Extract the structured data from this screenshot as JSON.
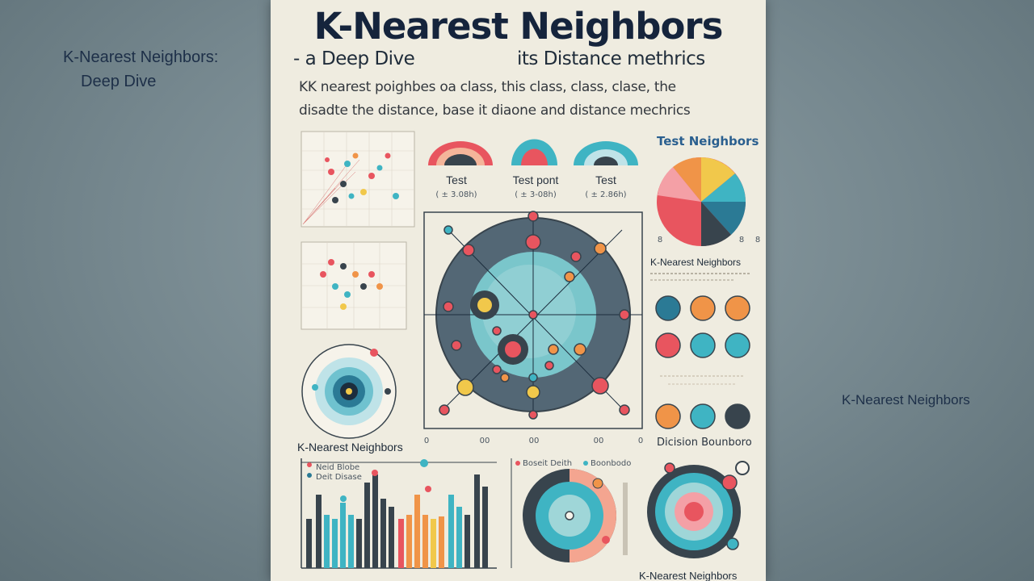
{
  "side_labels": {
    "left_line1": "K-Nearest Neighbors:",
    "left_line2": "Deep Dive",
    "right": "K-Nearest Neighbors"
  },
  "poster": {
    "title": "K-Nearest Neighbors",
    "subtitle_left": "- a Deep Dive",
    "subtitle_right": "its Distance methrics",
    "desc_line1": "KK nearest poighbes oa class, this class, class, clase, the",
    "desc_line2": "disadte the distance, base it diaone and distance mechrics",
    "test_labels": [
      {
        "name": "Test",
        "value": "( ± 3.08h)"
      },
      {
        "name": "Test pont",
        "value": "( ± 3-08h)"
      },
      {
        "name": "Test",
        "value": "( ± 2.86h)"
      }
    ],
    "test_neighbors_heading": "Test Neighbors",
    "knn_label_center": "K-Nearest Neighbors",
    "knn_label_right": "K-Nearest Neighbors",
    "knn_label_bottom": "K-Nearest Neighbors",
    "decision_label": "Dicision Bounboro",
    "legend_bar": [
      "Neid Blobe",
      "Deit Disase"
    ],
    "legend_target": [
      "Boseit Deith",
      "Boonbodo"
    ],
    "center_axis_ticks": [
      "0",
      "00",
      "00",
      "00",
      "0"
    ],
    "pie_ticks": [
      "8",
      "8",
      "8"
    ]
  },
  "colors": {
    "navy": "#15243c",
    "teal": "#3fb4c3",
    "red": "#e8555f",
    "orange": "#f09448",
    "yellow": "#f1c84b",
    "dark": "#38444d"
  }
}
